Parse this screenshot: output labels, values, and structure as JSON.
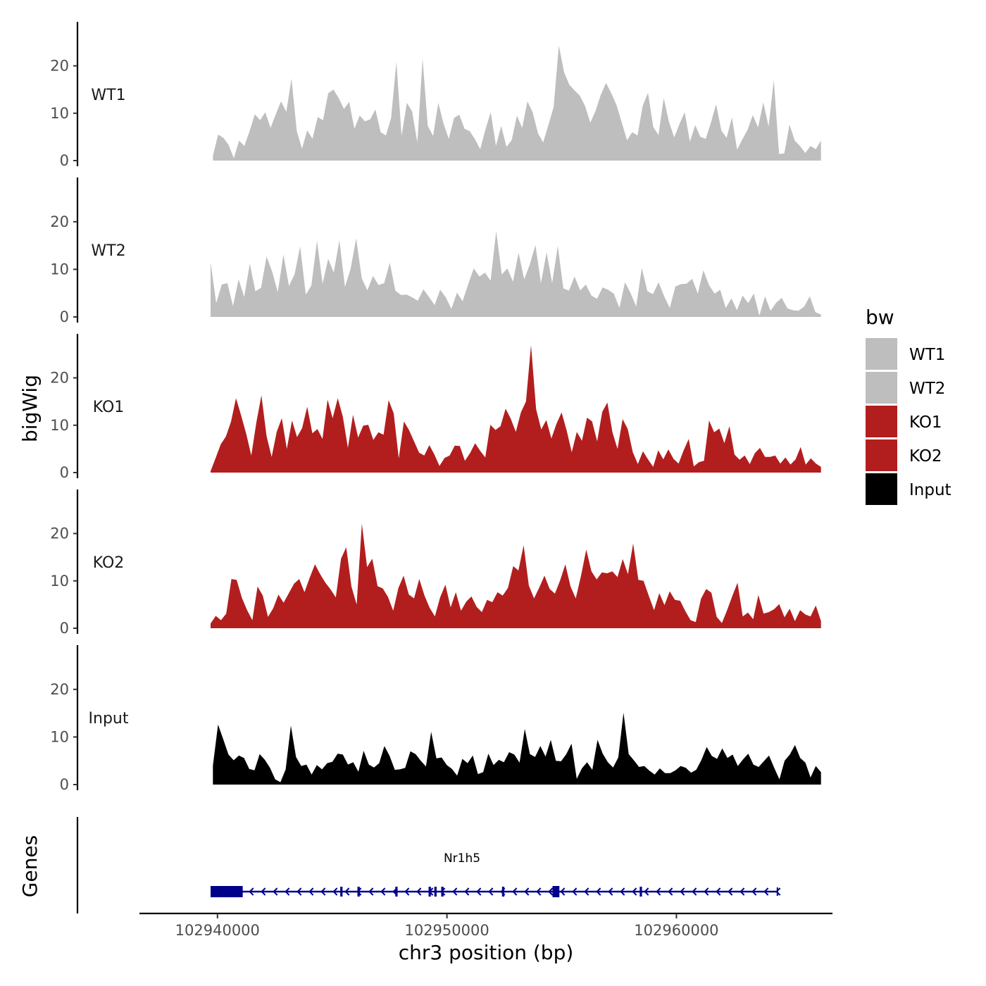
{
  "chart_data": {
    "type": "area",
    "title": "",
    "ylabel": "bigWig",
    "gene_track_label": "Genes",
    "xlabel": "chr3 position (bp)",
    "xlim": [
      102936600,
      102966800
    ],
    "data_xlim": [
      102939700,
      102966300
    ],
    "x_ticks": [
      102940000,
      102950000,
      102960000
    ],
    "x_tick_labels": [
      "102940000",
      "102950000",
      "102960000"
    ],
    "ylim": [
      0,
      29
    ],
    "y_ticks": [
      0,
      10,
      20
    ],
    "y_tick_labels": [
      "0",
      "10",
      "20"
    ],
    "legend": {
      "title": "bw",
      "position": "right",
      "entries": [
        {
          "label": "WT1",
          "color": "#bebebe"
        },
        {
          "label": "WT2",
          "color": "#bebebe"
        },
        {
          "label": "KO1",
          "color": "#b21e1e"
        },
        {
          "label": "KO2",
          "color": "#b21e1e"
        },
        {
          "label": "Input",
          "color": "#000000"
        }
      ]
    },
    "series": [
      {
        "name": "WT1",
        "color": "#bebebe",
        "x_start": 102939800,
        "x_end": 102966300,
        "values": [
          1.0,
          5.5,
          4.8,
          3.3,
          0.5,
          4.2,
          3.1,
          6.2,
          9.8,
          8.5,
          10.2,
          6.9,
          9.8,
          12.5,
          10.3,
          17.3,
          6.2,
          2.5,
          6.4,
          4.6,
          9.2,
          8.5,
          14.2,
          15.0,
          13.2,
          10.9,
          12.4,
          6.7,
          9.5,
          8.3,
          8.7,
          10.8,
          6.0,
          5.3,
          9.0,
          20.8,
          5.2,
          12.2,
          10.4,
          3.8,
          21.5,
          7.3,
          5.2,
          12.2,
          7.8,
          4.6,
          9.0,
          9.7,
          6.7,
          6.2,
          4.5,
          2.4,
          6.6,
          10.2,
          3.1,
          7.3,
          2.9,
          4.3,
          9.5,
          6.9,
          12.5,
          10.2,
          5.8,
          3.8,
          7.5,
          11.3,
          24.3,
          18.6,
          16.0,
          14.8,
          13.7,
          11.5,
          8.0,
          10.5,
          13.9,
          16.4,
          14.2,
          11.7,
          8.0,
          4.3,
          6.0,
          5.3,
          11.6,
          14.3,
          7.1,
          5.4,
          13.2,
          8.2,
          4.9,
          7.7,
          10.2,
          4.0,
          7.5,
          5.0,
          4.6,
          8.0,
          11.9,
          6.3,
          4.8,
          9.1,
          2.3,
          4.5,
          6.5,
          9.6,
          7.0,
          12.3,
          7.2,
          17.0,
          1.4,
          1.5,
          7.6,
          4.2,
          3.1,
          1.6,
          3.1,
          2.4,
          4.2
        ]
      },
      {
        "name": "WT2",
        "color": "#bebebe",
        "x_start": 102939700,
        "x_end": 102966300,
        "values": [
          11.5,
          2.9,
          6.8,
          7.1,
          2.3,
          7.9,
          4.2,
          11.2,
          5.4,
          6.1,
          12.7,
          9.5,
          5.2,
          13.1,
          6.5,
          9.0,
          14.8,
          4.7,
          6.6,
          16.0,
          7.0,
          12.2,
          9.3,
          16.1,
          6.3,
          10.1,
          16.5,
          8.1,
          5.6,
          8.6,
          6.7,
          7.1,
          11.4,
          5.5,
          4.6,
          4.7,
          4.1,
          3.4,
          5.8,
          4.2,
          2.5,
          5.7,
          4.1,
          1.7,
          5.1,
          3.3,
          6.9,
          10.2,
          8.5,
          9.3,
          7.6,
          18.0,
          8.9,
          10.2,
          7.4,
          13.5,
          7.9,
          11.0,
          15.1,
          7.1,
          13.6,
          7.1,
          14.9,
          6.0,
          5.5,
          8.5,
          5.6,
          6.8,
          4.5,
          3.8,
          6.2,
          5.7,
          4.9,
          1.9,
          7.3,
          5.0,
          2.2,
          10.3,
          5.4,
          4.8,
          7.3,
          4.3,
          1.9,
          6.4,
          6.9,
          7.0,
          8.0,
          4.9,
          9.8,
          6.7,
          4.9,
          5.7,
          1.9,
          3.9,
          1.4,
          4.5,
          2.9,
          4.9,
          0.3,
          4.3,
          1.3,
          3.0,
          4.0,
          1.8,
          1.4,
          1.3,
          2.2,
          4.3,
          1.0,
          0.5
        ]
      },
      {
        "name": "KO1",
        "color": "#b21e1e",
        "x_start": 102939700,
        "x_end": 102966300,
        "values": [
          0.3,
          3.1,
          6.0,
          7.6,
          10.7,
          15.7,
          12.1,
          8.2,
          3.6,
          10.6,
          16.3,
          7.7,
          3.3,
          8.6,
          11.5,
          5.0,
          11.0,
          7.5,
          9.4,
          13.9,
          8.3,
          9.2,
          7.1,
          15.4,
          11.5,
          15.7,
          11.8,
          5.2,
          12.2,
          7.4,
          9.9,
          10.1,
          6.9,
          8.5,
          8.0,
          15.3,
          12.5,
          3.0,
          10.8,
          9.0,
          6.6,
          4.2,
          3.6,
          5.8,
          3.8,
          1.4,
          3.1,
          3.6,
          5.7,
          5.6,
          2.5,
          4.1,
          6.2,
          4.6,
          3.2,
          10.1,
          9.0,
          9.8,
          13.5,
          11.4,
          8.6,
          12.7,
          15.0,
          26.9,
          13.4,
          9.1,
          11.1,
          7.2,
          10.3,
          12.7,
          8.9,
          4.3,
          8.6,
          6.7,
          11.6,
          10.8,
          6.6,
          12.8,
          14.8,
          8.5,
          5.0,
          11.3,
          9.2,
          4.3,
          1.8,
          4.5,
          2.8,
          1.2,
          4.7,
          2.8,
          4.9,
          2.9,
          1.9,
          4.7,
          7.1,
          1.3,
          2.2,
          2.5,
          11.0,
          8.5,
          9.3,
          6.2,
          9.8,
          3.8,
          2.7,
          3.6,
          1.8,
          4.1,
          5.2,
          3.3,
          3.3,
          3.6,
          1.9,
          3.2,
          1.7,
          2.8,
          5.4,
          1.7,
          3.0,
          1.9,
          1.2
        ]
      },
      {
        "name": "KO2",
        "color": "#b21e1e",
        "x_start": 102939700,
        "x_end": 102966300,
        "values": [
          1.0,
          2.6,
          1.7,
          3.1,
          10.4,
          10.2,
          6.4,
          3.8,
          1.7,
          8.8,
          6.9,
          2.4,
          4.2,
          7.1,
          5.4,
          7.4,
          9.4,
          10.4,
          7.6,
          10.7,
          13.5,
          11.4,
          9.6,
          8.2,
          6.5,
          14.7,
          17.1,
          8.8,
          5.0,
          22.1,
          12.9,
          14.7,
          8.9,
          8.4,
          6.6,
          3.7,
          8.5,
          11.1,
          7.1,
          6.3,
          10.4,
          6.9,
          4.3,
          2.5,
          6.5,
          9.2,
          4.4,
          7.6,
          3.7,
          5.6,
          6.7,
          4.5,
          3.4,
          6.0,
          5.5,
          7.6,
          6.9,
          8.5,
          13.1,
          12.2,
          17.5,
          9.0,
          6.3,
          8.6,
          11.1,
          8.3,
          7.3,
          10.1,
          13.5,
          8.8,
          6.3,
          11.1,
          16.6,
          12.0,
          10.3,
          11.8,
          11.6,
          12.0,
          10.8,
          14.6,
          11.4,
          17.9,
          10.2,
          10.0,
          6.8,
          3.8,
          7.4,
          4.9,
          7.8,
          6.0,
          5.8,
          3.6,
          1.7,
          1.3,
          6.2,
          8.3,
          7.5,
          2.4,
          1.1,
          3.8,
          6.8,
          9.6,
          2.5,
          3.3,
          1.9,
          7.0,
          3.1,
          3.4,
          4.0,
          5.1,
          2.3,
          4.1,
          1.5,
          3.8,
          2.9,
          2.5,
          4.8,
          1.5
        ]
      },
      {
        "name": "Input",
        "color": "#000000",
        "x_start": 102939800,
        "x_end": 102966300,
        "values": [
          4.0,
          12.6,
          9.5,
          6.3,
          5.1,
          6.1,
          5.6,
          3.3,
          3.0,
          6.4,
          5.2,
          3.5,
          1.1,
          0.5,
          3.2,
          12.4,
          5.8,
          3.9,
          4.2,
          2.1,
          4.1,
          3.2,
          4.5,
          4.8,
          6.5,
          6.3,
          4.2,
          4.7,
          2.7,
          7.1,
          4.2,
          3.6,
          4.5,
          8.1,
          6.0,
          3.1,
          3.2,
          3.5,
          7.0,
          6.4,
          5.0,
          3.8,
          11.1,
          5.5,
          5.7,
          4.1,
          3.3,
          1.9,
          5.4,
          4.5,
          6.1,
          2.2,
          2.6,
          6.5,
          4.1,
          5.2,
          4.7,
          6.8,
          6.3,
          4.6,
          11.7,
          6.4,
          5.8,
          8.1,
          5.9,
          9.4,
          5.0,
          4.9,
          6.4,
          8.6,
          1.2,
          3.4,
          4.7,
          3.1,
          9.4,
          6.5,
          4.7,
          3.6,
          5.7,
          15.1,
          6.4,
          5.1,
          3.7,
          3.9,
          2.9,
          2.1,
          3.4,
          2.4,
          2.4,
          3.0,
          3.9,
          3.5,
          2.5,
          3.1,
          5.2,
          7.9,
          6.0,
          5.4,
          7.6,
          5.6,
          6.3,
          3.9,
          5.3,
          6.5,
          4.2,
          3.7,
          4.9,
          6.1,
          3.5,
          1.1,
          5.0,
          6.3,
          8.3,
          5.6,
          4.6,
          1.5,
          3.9,
          2.6
        ]
      }
    ],
    "gene_track": {
      "name": "Nr1h5",
      "strand": "-",
      "color": "#00008b",
      "start": 102939700,
      "end": 102964400,
      "exons": [
        {
          "start": 102939700,
          "end": 102941100
        },
        {
          "start": 102945350,
          "end": 102945450
        },
        {
          "start": 102946100,
          "end": 102946200
        },
        {
          "start": 102947750,
          "end": 102947850
        },
        {
          "start": 102949200,
          "end": 102949300
        },
        {
          "start": 102949450,
          "end": 102949550
        },
        {
          "start": 102949750,
          "end": 102949850
        },
        {
          "start": 102952400,
          "end": 102952500
        },
        {
          "start": 102954600,
          "end": 102954900
        },
        {
          "start": 102958400,
          "end": 102958500
        }
      ]
    }
  }
}
